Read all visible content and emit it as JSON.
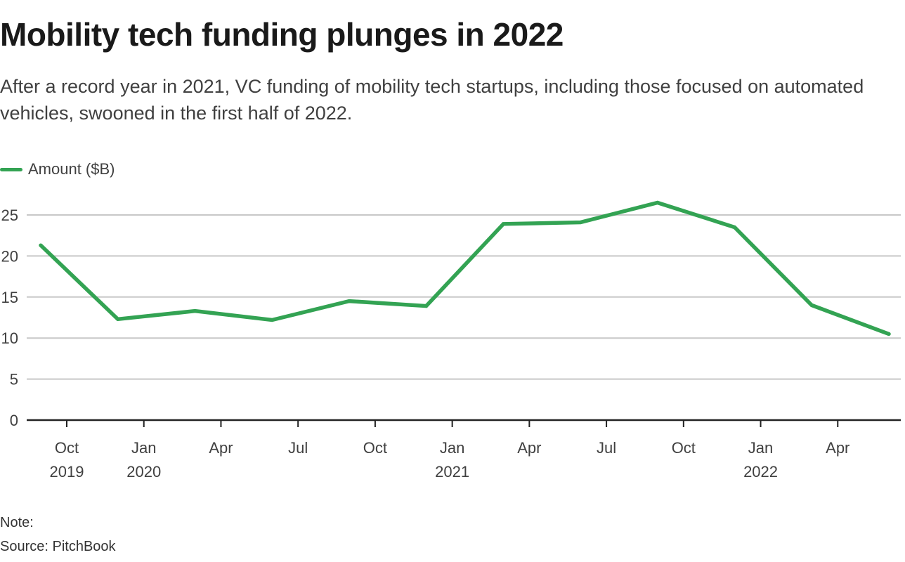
{
  "header": {
    "title": "Mobility tech funding plunges in 2022",
    "subtitle": "After a record year in 2021, VC funding of mobility tech startups, including those focused on automated vehicles, swooned in the first half of 2022."
  },
  "footer": {
    "note": "Note:",
    "source": "Source: PitchBook"
  },
  "colors": {
    "series": "#33a353",
    "grid": "#c8c8c8",
    "axis": "#222222",
    "text": "#404040"
  },
  "chart_data": {
    "type": "line",
    "title": "Mobility tech funding plunges in 2022",
    "xlabel": "",
    "ylabel": "",
    "ylim": [
      0,
      25
    ],
    "yticks": [
      0,
      5,
      10,
      15,
      20,
      25
    ],
    "grid": true,
    "legend_position": "top-left",
    "x": [
      "Q3 2019",
      "Q4 2019",
      "Q1 2020",
      "Q2 2020",
      "Q3 2020",
      "Q4 2020",
      "Q1 2021",
      "Q2 2021",
      "Q3 2021",
      "Q4 2021",
      "Q1 2022",
      "Q2 2022"
    ],
    "series": [
      {
        "name": "Amount ($B)",
        "values": [
          21.3,
          12.3,
          13.3,
          12.2,
          14.5,
          13.9,
          23.9,
          24.1,
          26.5,
          23.5,
          14.0,
          10.5
        ]
      }
    ],
    "xticks": [
      {
        "label": "Oct",
        "year": "2019"
      },
      {
        "label": "Jan",
        "year": "2020"
      },
      {
        "label": "Apr",
        "year": ""
      },
      {
        "label": "Jul",
        "year": ""
      },
      {
        "label": "Oct",
        "year": ""
      },
      {
        "label": "Jan",
        "year": "2021"
      },
      {
        "label": "Apr",
        "year": ""
      },
      {
        "label": "Jul",
        "year": ""
      },
      {
        "label": "Oct",
        "year": ""
      },
      {
        "label": "Jan",
        "year": "2022"
      },
      {
        "label": "Apr",
        "year": ""
      }
    ]
  }
}
